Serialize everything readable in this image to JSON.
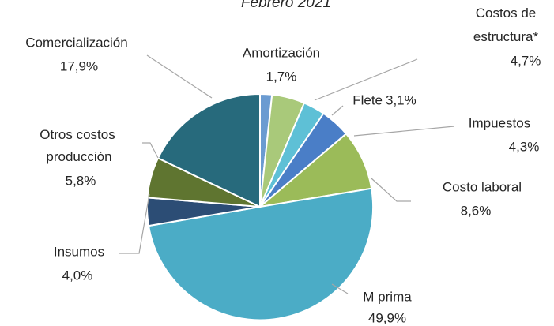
{
  "chart_data": {
    "type": "pie",
    "title": "Febrero 2021",
    "categories": [
      "Amortización",
      "Costos de estructura*",
      "Flete",
      "Impuestos",
      "Costo laboral",
      "M prima",
      "Insumos",
      "Otros costos producción",
      "Comercialización"
    ],
    "values": [
      1.7,
      4.7,
      3.1,
      4.3,
      8.6,
      49.9,
      4.0,
      5.8,
      17.9
    ],
    "value_labels": [
      "1,7%",
      "4,7%",
      "3,1%",
      "4,3%",
      "8,6%",
      "49,9%",
      "4,0%",
      "5,8%",
      "17,9%"
    ],
    "colors": [
      "#6b9bd1",
      "#a9c97a",
      "#5ec0d6",
      "#4a7ec7",
      "#9bbb59",
      "#4bacc6",
      "#2c4d75",
      "#5f7530",
      "#276a7c"
    ]
  }
}
